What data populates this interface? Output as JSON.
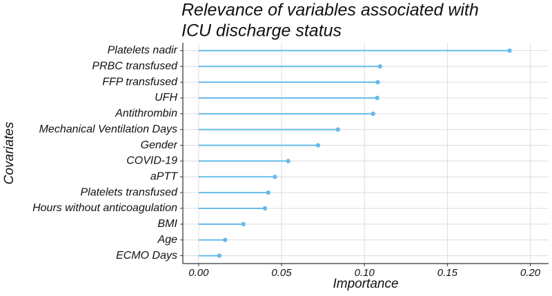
{
  "chart_data": {
    "type": "lollipop",
    "title": [
      "Relevance of variables associated with",
      "ICU discharge status"
    ],
    "xlabel": "Importance",
    "ylabel": "Covariates",
    "categories": [
      "Platelets nadir",
      "PRBC transfused",
      "FFP transfused",
      "UFH",
      "Antithrombin",
      "Mechanical Ventilation Days",
      "Gender",
      "COVID-19",
      "aPTT",
      "Platelets transfused",
      "Hours without anticoagulation",
      "BMI",
      "Age",
      "ECMO Days"
    ],
    "values": [
      0.1875,
      0.1094,
      0.108,
      0.1077,
      0.1052,
      0.084,
      0.072,
      0.054,
      0.046,
      0.042,
      0.04,
      0.027,
      0.016,
      0.0125
    ],
    "color": "#66bbea",
    "xlim": [
      -0.0095,
      0.211
    ],
    "xticks": [
      {
        "value": 0,
        "label": "0.00"
      },
      {
        "value": 0.05,
        "label": "0.05"
      },
      {
        "value": 0.1,
        "label": "0.10"
      },
      {
        "value": 0.15,
        "label": "0.15"
      },
      {
        "value": 0.2,
        "label": "0.20"
      }
    ],
    "grid": true
  }
}
